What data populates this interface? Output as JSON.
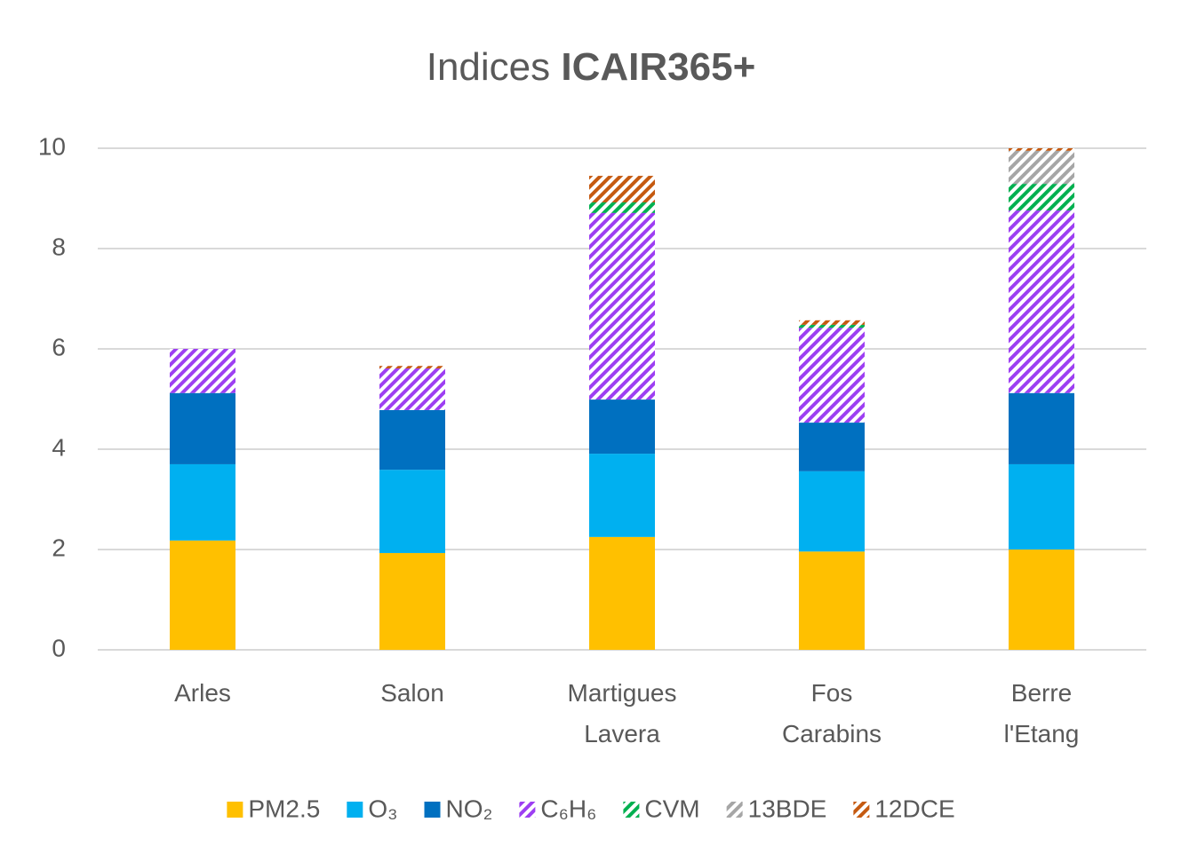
{
  "chart_data": {
    "type": "stacked_bar",
    "title": [
      "Indices",
      "ICAIR365+"
    ],
    "categories": [
      "Arles",
      "Salon",
      "Martigues Lavera",
      "Fos Carabins",
      "Berre l'Etang"
    ],
    "series": [
      {
        "name": "PM2.5",
        "color": "#ffc000",
        "hatch": false,
        "values": [
          2.18,
          1.93,
          2.25,
          1.96,
          2.0
        ]
      },
      {
        "name": "O₃",
        "color": "#00b0f0",
        "hatch": false,
        "values": [
          1.52,
          1.66,
          1.66,
          1.6,
          1.7
        ]
      },
      {
        "name": "NO₂",
        "color": "#0070c0",
        "hatch": false,
        "values": [
          1.42,
          1.19,
          1.08,
          0.97,
          1.42
        ]
      },
      {
        "name": "C₆H₆",
        "color": "#9d3ff2",
        "hatch": true,
        "values": [
          0.88,
          0.83,
          3.72,
          1.89,
          3.64
        ]
      },
      {
        "name": "CVM",
        "color": "#00b050",
        "hatch": true,
        "values": [
          0,
          0,
          0.21,
          0.06,
          0.53
        ]
      },
      {
        "name": "13BDE",
        "color": "#a6a6a6",
        "hatch": true,
        "values": [
          0,
          0,
          0,
          0,
          0.66
        ]
      },
      {
        "name": "12DCE",
        "color": "#c55a11",
        "hatch": true,
        "values": [
          0,
          0.05,
          0.53,
          0.09,
          0.05
        ]
      }
    ],
    "ylim": [
      0,
      10
    ],
    "yticks": [
      0,
      2,
      4,
      6,
      8,
      10
    ],
    "grid": true,
    "legend": "bottom"
  }
}
